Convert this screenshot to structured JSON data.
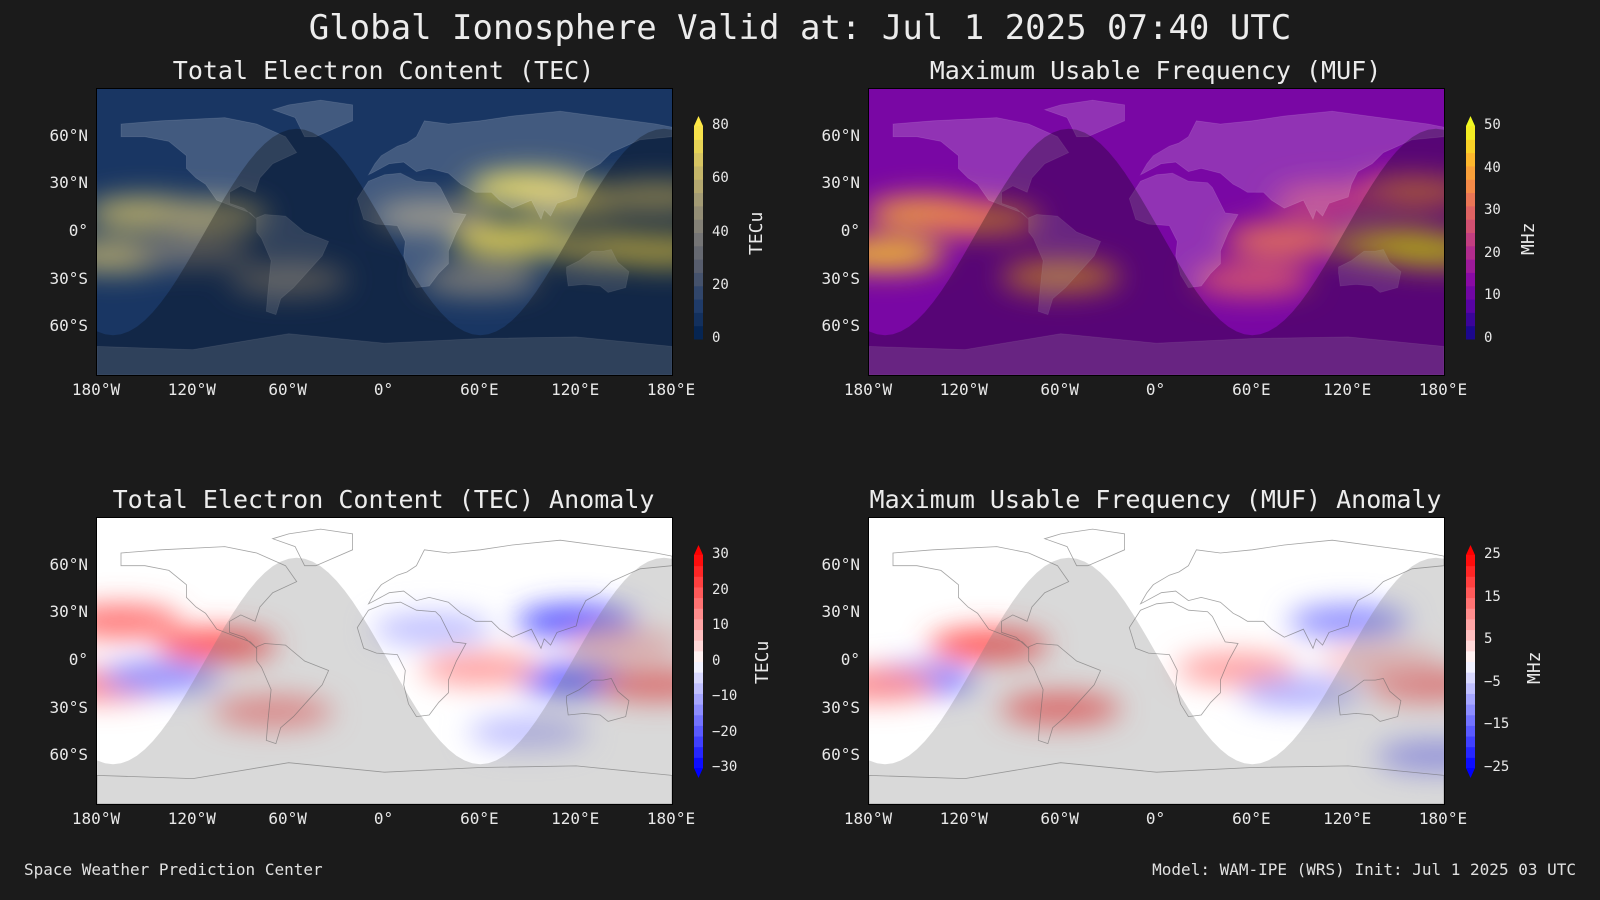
{
  "title": "Global Ionosphere Valid at: Jul 1 2025 07:40 UTC",
  "footer": {
    "left": "Space Weather Prediction Center",
    "right": "Model: WAM-IPE (WRS) Init: Jul 1 2025 03 UTC"
  },
  "colors": {
    "background": "#1b1b1b",
    "text": "#e8e8e8"
  },
  "chart_data": [
    {
      "type": "heatmap",
      "id": "tec",
      "title": "Total Electron Content (TEC)",
      "colorbar_label": "TECu",
      "colorbar_ticks": [
        "0",
        "20",
        "40",
        "60",
        "80"
      ],
      "colorbar_range": [
        0,
        80
      ],
      "colormap": "cividis",
      "colormap_stops": [
        "#00204c",
        "#213d6b",
        "#555b6c",
        "#7c7b78",
        "#a69d75",
        "#d3c164",
        "#ffe945"
      ],
      "xticks": [
        "180°W",
        "120°W",
        "60°W",
        "0°",
        "60°E",
        "120°E",
        "180°E"
      ],
      "yticks": [
        "60°N",
        "30°N",
        "0°",
        "30°S",
        "60°S"
      ],
      "xlim": [
        -180,
        180
      ],
      "ylim": [
        -90,
        90
      ],
      "features": [
        {
          "lon": -150,
          "lat": 12,
          "value": 62
        },
        {
          "lon": -110,
          "lat": 10,
          "value": 55
        },
        {
          "lon": -170,
          "lat": -15,
          "value": 58
        },
        {
          "lon": -120,
          "lat": -12,
          "value": 38
        },
        {
          "lon": -60,
          "lat": -30,
          "value": 40
        },
        {
          "lon": 90,
          "lat": 28,
          "value": 78
        },
        {
          "lon": 120,
          "lat": 20,
          "value": 65
        },
        {
          "lon": 170,
          "lat": 22,
          "value": 60
        },
        {
          "lon": 80,
          "lat": -5,
          "value": 74
        },
        {
          "lon": 140,
          "lat": -10,
          "value": 68
        },
        {
          "lon": 175,
          "lat": -12,
          "value": 72
        },
        {
          "lon": 30,
          "lat": 10,
          "value": 45
        },
        {
          "lon": 60,
          "lat": -30,
          "value": 42
        }
      ]
    },
    {
      "type": "heatmap",
      "id": "muf",
      "title": "Maximum Usable Frequency (MUF)",
      "colorbar_label": "MHz",
      "colorbar_ticks": [
        "0",
        "10",
        "20",
        "30",
        "40",
        "50"
      ],
      "colorbar_range": [
        0,
        50
      ],
      "colormap": "plasma",
      "colormap_stops": [
        "#0d0887",
        "#5302a3",
        "#8b0aa5",
        "#b83289",
        "#db5c68",
        "#f48849",
        "#febc2a",
        "#f0f921"
      ],
      "xticks": [
        "180°W",
        "120°W",
        "60°W",
        "0°",
        "60°E",
        "120°E",
        "180°E"
      ],
      "yticks": [
        "60°N",
        "30°N",
        "0°",
        "30°S",
        "60°S"
      ],
      "xlim": [
        -180,
        180
      ],
      "ylim": [
        -90,
        90
      ],
      "features": [
        {
          "lon": -145,
          "lat": 12,
          "value": 40
        },
        {
          "lon": -110,
          "lat": 8,
          "value": 36
        },
        {
          "lon": -170,
          "lat": -14,
          "value": 44
        },
        {
          "lon": -60,
          "lat": -28,
          "value": 38
        },
        {
          "lon": 80,
          "lat": -5,
          "value": 33
        },
        {
          "lon": 150,
          "lat": -8,
          "value": 46
        },
        {
          "lon": 175,
          "lat": -12,
          "value": 48
        },
        {
          "lon": 160,
          "lat": 25,
          "value": 34
        },
        {
          "lon": 110,
          "lat": 20,
          "value": 24
        },
        {
          "lon": 60,
          "lat": -30,
          "value": 28
        }
      ]
    },
    {
      "type": "heatmap",
      "id": "tec_anom",
      "title": "Total Electron Content (TEC) Anomaly",
      "colorbar_label": "TECu",
      "colorbar_ticks": [
        "30",
        "20",
        "10",
        "0",
        "−10",
        "−20",
        "−30"
      ],
      "colorbar_range": [
        -30,
        30
      ],
      "colormap": "bwr",
      "colormap_stops": [
        "#0000ff",
        "#8080ff",
        "#ffffff",
        "#ff8080",
        "#ff0000"
      ],
      "xticks": [
        "180°W",
        "120°W",
        "60°W",
        "0°",
        "60°E",
        "120°E",
        "180°E"
      ],
      "yticks": [
        "60°N",
        "30°N",
        "0°",
        "30°S",
        "60°S"
      ],
      "xlim": [
        -180,
        180
      ],
      "ylim": [
        -90,
        90
      ],
      "features": [
        {
          "lon": -165,
          "lat": 25,
          "value": 18
        },
        {
          "lon": -105,
          "lat": 10,
          "value": 22
        },
        {
          "lon": -175,
          "lat": -15,
          "value": 15
        },
        {
          "lon": -140,
          "lat": -10,
          "value": -14
        },
        {
          "lon": -70,
          "lat": -32,
          "value": 14
        },
        {
          "lon": 120,
          "lat": 25,
          "value": -22
        },
        {
          "lon": 120,
          "lat": -12,
          "value": -20
        },
        {
          "lon": 170,
          "lat": -15,
          "value": 18
        },
        {
          "lon": 60,
          "lat": -5,
          "value": 12
        },
        {
          "lon": 30,
          "lat": 20,
          "value": -8
        },
        {
          "lon": 90,
          "lat": -45,
          "value": -8
        },
        {
          "lon": 150,
          "lat": 10,
          "value": 8
        }
      ]
    },
    {
      "type": "heatmap",
      "id": "muf_anom",
      "title": "Maximum Usable Frequency (MUF) Anomaly",
      "colorbar_label": "MHz",
      "colorbar_ticks": [
        "25",
        "15",
        "5",
        "−5",
        "−15",
        "−25"
      ],
      "colorbar_range": [
        -25,
        25
      ],
      "colormap": "bwr",
      "colormap_stops": [
        "#0000ff",
        "#8080ff",
        "#ffffff",
        "#ff8080",
        "#ff0000"
      ],
      "xticks": [
        "180°W",
        "120°W",
        "60°W",
        "0°",
        "60°E",
        "120°E",
        "180°E"
      ],
      "yticks": [
        "60°N",
        "30°N",
        "0°",
        "30°S",
        "60°S"
      ],
      "xlim": [
        -180,
        180
      ],
      "ylim": [
        -90,
        90
      ],
      "features": [
        {
          "lon": -105,
          "lat": 10,
          "value": 18
        },
        {
          "lon": -150,
          "lat": -12,
          "value": -14
        },
        {
          "lon": -175,
          "lat": -15,
          "value": 12
        },
        {
          "lon": -60,
          "lat": -30,
          "value": 16
        },
        {
          "lon": 120,
          "lat": 25,
          "value": -12
        },
        {
          "lon": 50,
          "lat": -5,
          "value": 10
        },
        {
          "lon": 170,
          "lat": -15,
          "value": 14
        },
        {
          "lon": 90,
          "lat": -20,
          "value": -8
        },
        {
          "lon": 140,
          "lat": 0,
          "value": 6
        },
        {
          "lon": 175,
          "lat": -60,
          "value": -10
        }
      ]
    }
  ]
}
